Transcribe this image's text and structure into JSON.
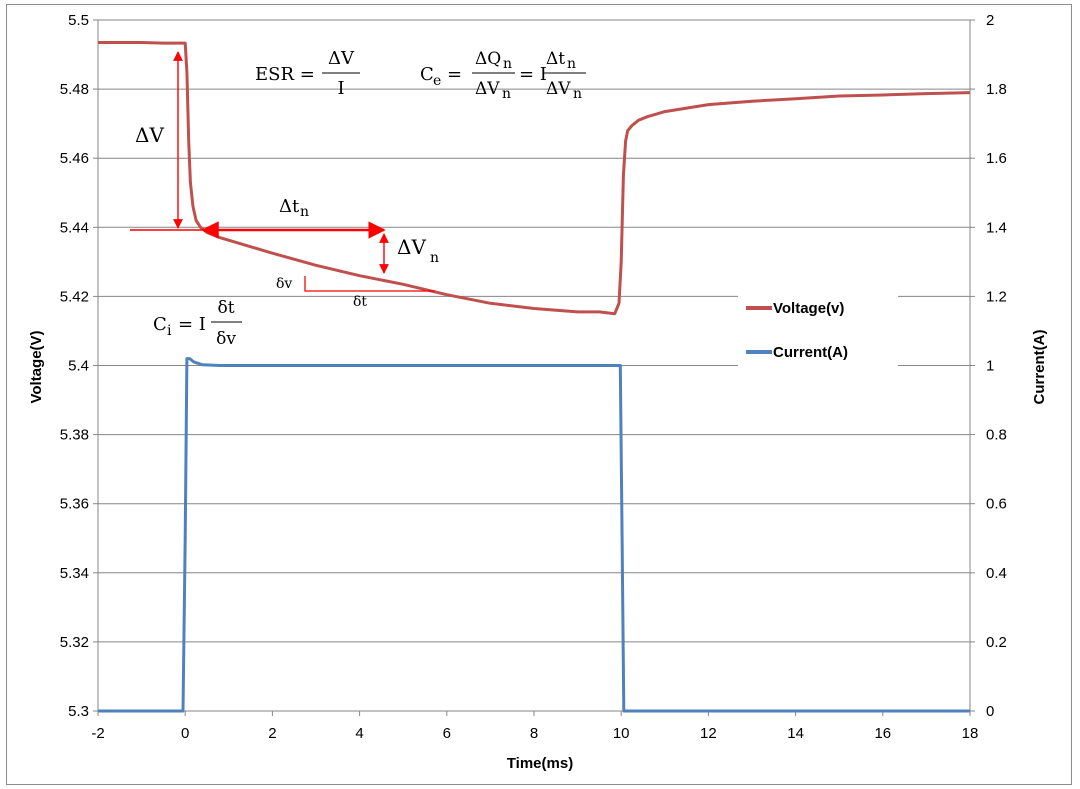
{
  "chart_data": {
    "type": "line",
    "xlabel": "Time(ms)",
    "ylabel_left": "Voltage(V)",
    "ylabel_right": "Current(A)",
    "xlim": [
      -2,
      18
    ],
    "ylim_left": [
      5.3,
      5.5
    ],
    "ylim_right": [
      0,
      2
    ],
    "x_ticks": [
      "-2",
      "0",
      "2",
      "4",
      "6",
      "8",
      "10",
      "12",
      "14",
      "16",
      "18"
    ],
    "y_left_ticks": [
      "5.3",
      "5.32",
      "5.34",
      "5.36",
      "5.38",
      "5.4",
      "5.42",
      "5.44",
      "5.46",
      "5.48",
      "5.5"
    ],
    "y_right_ticks": [
      "0",
      "0.2",
      "0.4",
      "0.6",
      "0.8",
      "1",
      "1.2",
      "1.4",
      "1.6",
      "1.8",
      "2"
    ],
    "grid": "horizontal",
    "legend_position": "right",
    "series": [
      {
        "name": "Voltage(v)",
        "axis": "left",
        "color": "#c0504d",
        "x": [
          -2,
          -1,
          -0.5,
          0,
          0.04,
          0.08,
          0.12,
          0.18,
          0.25,
          0.35,
          0.5,
          0.8,
          1.2,
          2,
          3,
          4,
          5,
          6,
          7,
          8,
          9,
          9.5,
          9.85,
          9.95,
          10.0,
          10.05,
          10.1,
          10.15,
          10.25,
          10.4,
          10.6,
          11,
          11.5,
          12,
          13,
          14,
          15,
          16,
          17,
          18
        ],
        "y": [
          5.4935,
          5.4935,
          5.4933,
          5.4933,
          5.485,
          5.465,
          5.453,
          5.446,
          5.442,
          5.44,
          5.4385,
          5.437,
          5.4355,
          5.4325,
          5.429,
          5.426,
          5.4235,
          5.4205,
          5.418,
          5.4165,
          5.4155,
          5.4155,
          5.415,
          5.418,
          5.43,
          5.455,
          5.465,
          5.468,
          5.4695,
          5.471,
          5.472,
          5.4735,
          5.4745,
          5.4755,
          5.4765,
          5.4772,
          5.478,
          5.4783,
          5.4787,
          5.479
        ]
      },
      {
        "name": "Current(A)",
        "axis": "right",
        "color": "#4f81bd",
        "x": [
          -2,
          -0.05,
          0.0,
          0.04,
          0.1,
          0.2,
          0.4,
          0.8,
          2,
          4,
          6,
          8,
          9.8,
          9.98,
          10.02,
          10.06,
          12,
          14,
          16,
          18
        ],
        "y": [
          0,
          0,
          0.5,
          1.02,
          1.02,
          1.01,
          1.002,
          1.0,
          1.0,
          1.0,
          1.0,
          1.0,
          1.0,
          1.0,
          0.5,
          0,
          0,
          0,
          0,
          0
        ]
      }
    ],
    "annotations": {
      "esr_lhs": "ESR =",
      "esr_num": "ΔV",
      "esr_den": "I",
      "ce_lhs": "C",
      "ce_lhs_sub": "e",
      "ce_eq1": "=",
      "ce_num1": "ΔQ",
      "ce_num1_sub": "n",
      "ce_den1": "ΔV",
      "ce_den1_sub": "n",
      "ce_eq2": "= I",
      "ce_num2": "Δt",
      "ce_num2_sub": "n",
      "ce_den2": "ΔV",
      "ce_den2_sub": "n",
      "ci_lhs": "C",
      "ci_lhs_sub": "i",
      "ci_eq": "= I",
      "ci_num": "δt",
      "ci_den": "δv",
      "delta_v": "ΔV",
      "delta_tn": "Δt",
      "delta_tn_sub": "n",
      "delta_vn": "ΔV",
      "delta_vn_sub": "n",
      "small_dv": "δv",
      "small_dt": "δt",
      "arrow_color": "#ff0000"
    }
  }
}
